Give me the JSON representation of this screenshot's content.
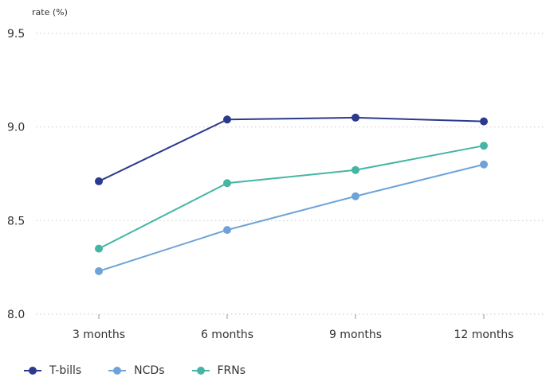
{
  "chart_data": {
    "type": "line",
    "ylabel": "rate (%)",
    "categories": [
      "3 months",
      "6 months",
      "9 months",
      "12 months"
    ],
    "ylim": [
      8.0,
      9.5
    ],
    "yticks": [
      "8.0",
      "8.5",
      "9.0",
      "9.5"
    ],
    "grid": "horizontal-dotted",
    "legend_position": "bottom-left",
    "series": [
      {
        "name": "T-bills",
        "color": "#2b3a8c",
        "values": [
          8.71,
          9.04,
          9.05,
          9.03
        ]
      },
      {
        "name": "NCDs",
        "color": "#6fa3d8",
        "values": [
          8.23,
          8.45,
          8.63,
          8.8
        ]
      },
      {
        "name": "FRNs",
        "color": "#45b5a5",
        "values": [
          8.35,
          8.7,
          8.77,
          8.9
        ]
      }
    ]
  }
}
